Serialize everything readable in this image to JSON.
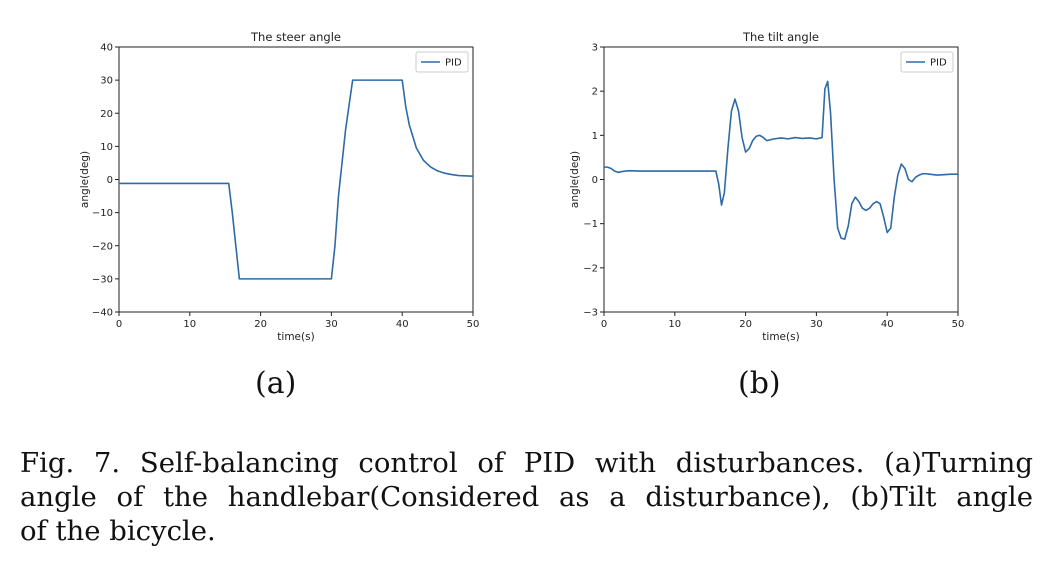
{
  "chart_data": [
    {
      "type": "line",
      "title": "The steer angle",
      "xlabel": "time(s)",
      "ylabel": "angle(deg)",
      "xlim": [
        0,
        50
      ],
      "ylim": [
        -40,
        40
      ],
      "xticks": [
        0,
        10,
        20,
        30,
        40,
        50
      ],
      "yticks": [
        -40,
        -30,
        -20,
        -10,
        0,
        10,
        20,
        30,
        40
      ],
      "legend": [
        "PID"
      ],
      "legend_loc": "top-right",
      "color": "#2e6aa6",
      "series": [
        {
          "name": "PID",
          "x": [
            0,
            15.5,
            16.0,
            16.5,
            17.0,
            30.0,
            30.5,
            31.0,
            32.0,
            33.0,
            40.0,
            40.5,
            41.0,
            42.0,
            43.0,
            44.0,
            45.0,
            46.0,
            47.0,
            48.0,
            50.0
          ],
          "y": [
            -1.2,
            -1.2,
            -10,
            -20,
            -30,
            -30,
            -20,
            -5,
            15,
            30,
            30,
            22,
            16.5,
            9.5,
            5.8,
            3.8,
            2.6,
            1.9,
            1.5,
            1.2,
            1.0
          ]
        }
      ]
    },
    {
      "type": "line",
      "title": "The tilt angle",
      "xlabel": "time(s)",
      "ylabel": "angle(deg)",
      "xlim": [
        0,
        50
      ],
      "ylim": [
        -3,
        3
      ],
      "xticks": [
        0,
        10,
        20,
        30,
        40,
        50
      ],
      "yticks": [
        -3,
        -2,
        -1,
        0,
        1,
        2,
        3
      ],
      "legend": [
        "PID"
      ],
      "legend_loc": "top-right",
      "color": "#2e6aa6",
      "series": [
        {
          "name": "PID",
          "x": [
            0,
            0.5,
            1.0,
            1.5,
            2.0,
            2.5,
            3.5,
            5,
            10,
            15.8,
            16.2,
            16.6,
            17.0,
            17.5,
            18.0,
            18.5,
            19.0,
            19.5,
            20.0,
            20.5,
            21.0,
            21.5,
            22.0,
            22.5,
            23.0,
            24.0,
            25.0,
            26.0,
            27.0,
            28.0,
            29.0,
            30.0,
            30.8,
            31.2,
            31.6,
            32.0,
            32.5,
            33.0,
            33.5,
            34.0,
            34.5,
            35.0,
            35.5,
            36.0,
            36.5,
            37.0,
            37.5,
            38.0,
            38.5,
            39.0,
            39.5,
            40.0,
            40.5,
            41.0,
            41.5,
            42.0,
            42.5,
            43.0,
            43.5,
            44.0,
            44.5,
            45.0,
            45.5,
            46.0,
            47.0,
            48.0,
            49.0,
            50.0
          ],
          "y": [
            0.28,
            0.28,
            0.25,
            0.19,
            0.16,
            0.18,
            0.2,
            0.19,
            0.19,
            0.19,
            -0.1,
            -0.58,
            -0.3,
            0.7,
            1.55,
            1.82,
            1.55,
            0.95,
            0.62,
            0.7,
            0.88,
            0.98,
            1.0,
            0.95,
            0.88,
            0.92,
            0.94,
            0.92,
            0.95,
            0.93,
            0.94,
            0.92,
            0.95,
            2.05,
            2.22,
            1.5,
            0.0,
            -1.1,
            -1.33,
            -1.35,
            -1.05,
            -0.55,
            -0.4,
            -0.5,
            -0.65,
            -0.7,
            -0.65,
            -0.55,
            -0.5,
            -0.55,
            -0.85,
            -1.2,
            -1.1,
            -0.4,
            0.1,
            0.35,
            0.25,
            0.0,
            -0.05,
            0.05,
            0.1,
            0.13,
            0.13,
            0.12,
            0.1,
            0.11,
            0.12,
            0.12
          ]
        }
      ]
    }
  ],
  "subfigure_labels": {
    "a": "(a)",
    "b": "(b)"
  },
  "caption": {
    "line1": "Fig. 7.  Self-balancing control of PID with disturbances. (a)Turning",
    "line2": "angle of the handlebar(Considered as a disturbance), (b)Tilt angle",
    "line3": "of the bicycle."
  }
}
